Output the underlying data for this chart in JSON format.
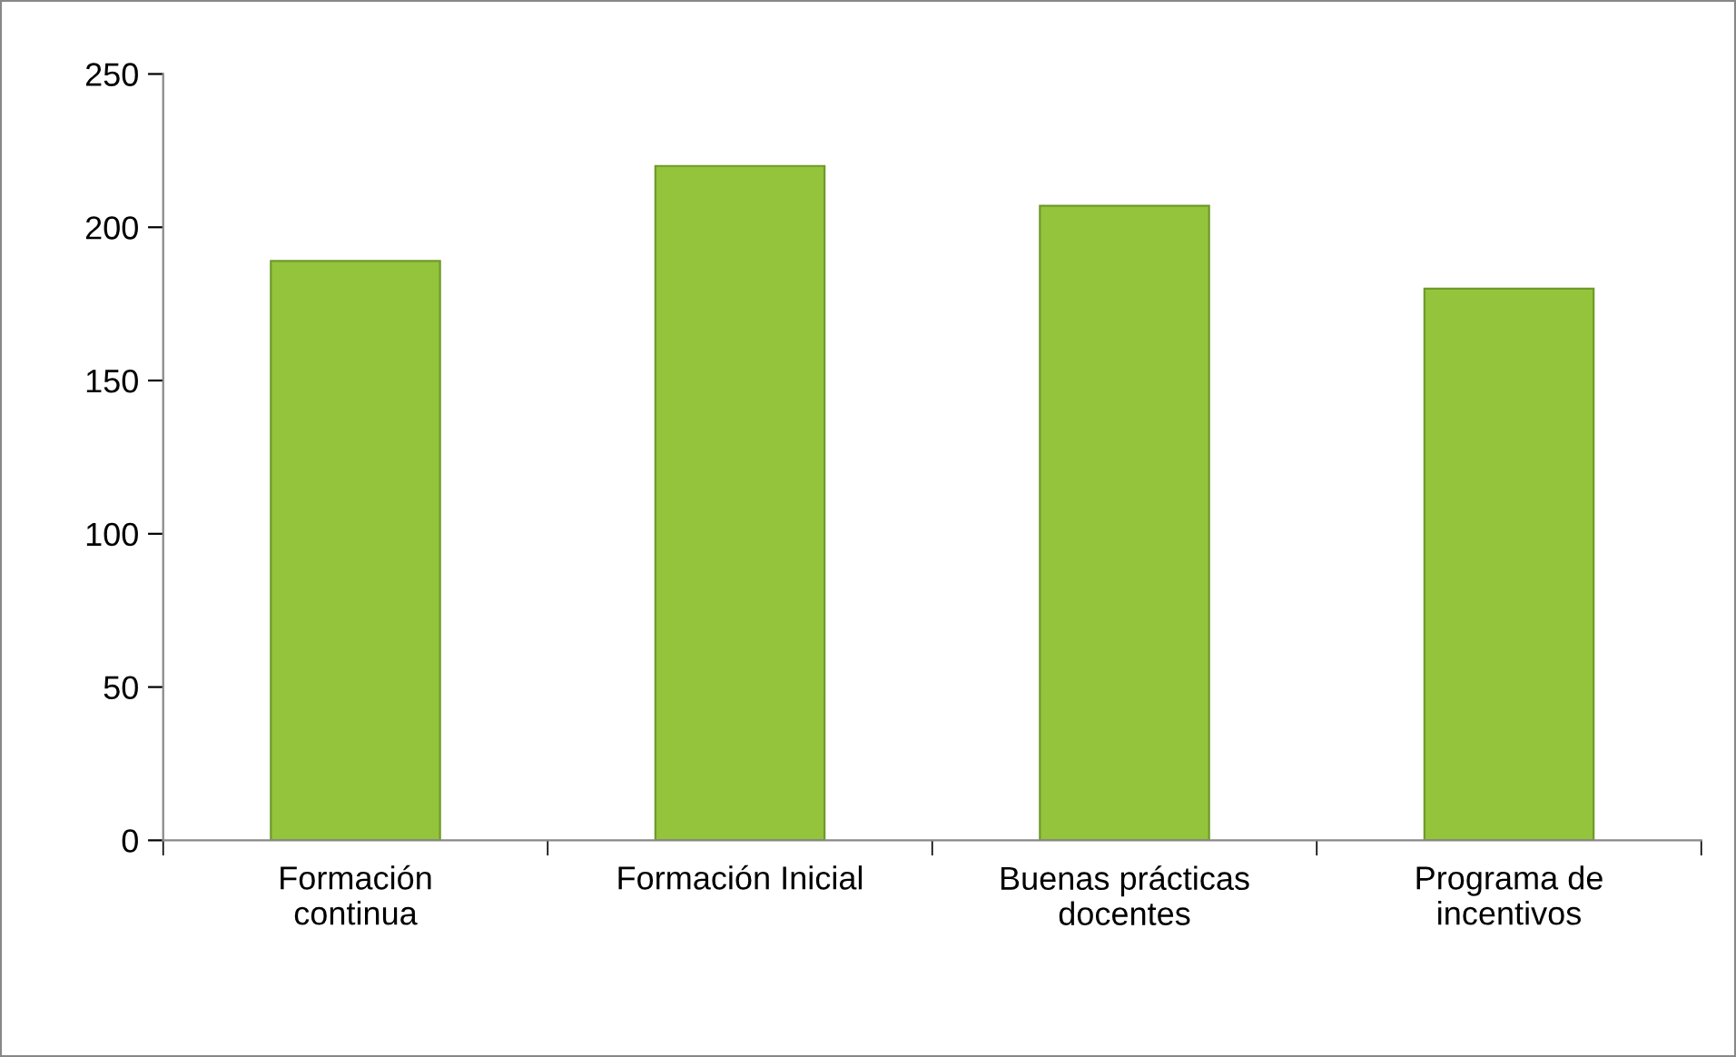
{
  "chart_data": {
    "type": "bar",
    "categories": [
      "Formación\ncontinua",
      "Formación Inicial",
      "Buenas prácticas\ndocentes",
      "Programa de\nincentivos"
    ],
    "values": [
      189,
      220,
      207,
      180
    ],
    "color": "#94c43c",
    "ylim": [
      0,
      250
    ],
    "yticks": [
      0,
      50,
      100,
      150,
      200,
      250
    ],
    "grid": false,
    "legend": false
  }
}
